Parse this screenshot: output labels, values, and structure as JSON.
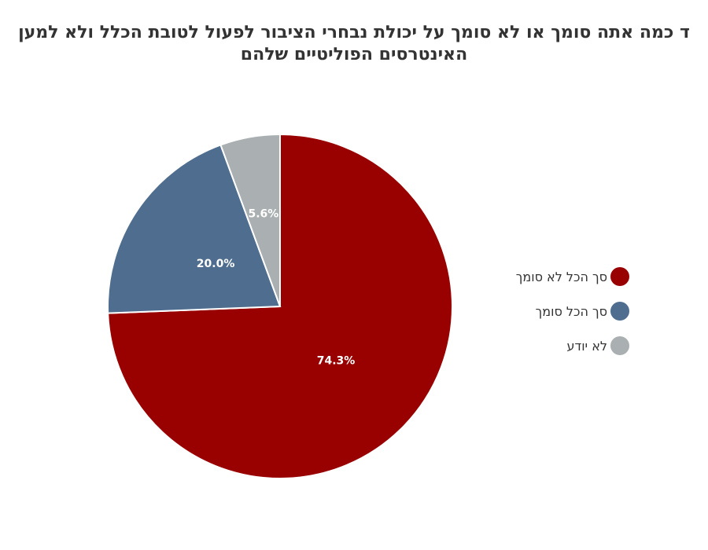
{
  "chart_data": {
    "type": "pie",
    "title": "ד כמה אתה סומך או לא סומך על יכולת נבחרי הציבור לפעול לטובת הכלל ולא למען האינטרסים הפוליטיים שלהם",
    "slices": [
      {
        "name": "סך הכל לא סומך",
        "value": 74.3,
        "label": "74.3%",
        "color": "#990000"
      },
      {
        "name": "סך הכל סומך",
        "value": 20.0,
        "label": "20.0%",
        "color": "#4f6d8f"
      },
      {
        "name": "לא יודע",
        "value": 5.6,
        "label": "5.6%",
        "color": "#aab0b1"
      }
    ],
    "start_angle": "12 o'clock",
    "direction": "clockwise",
    "legend_position": "right"
  }
}
